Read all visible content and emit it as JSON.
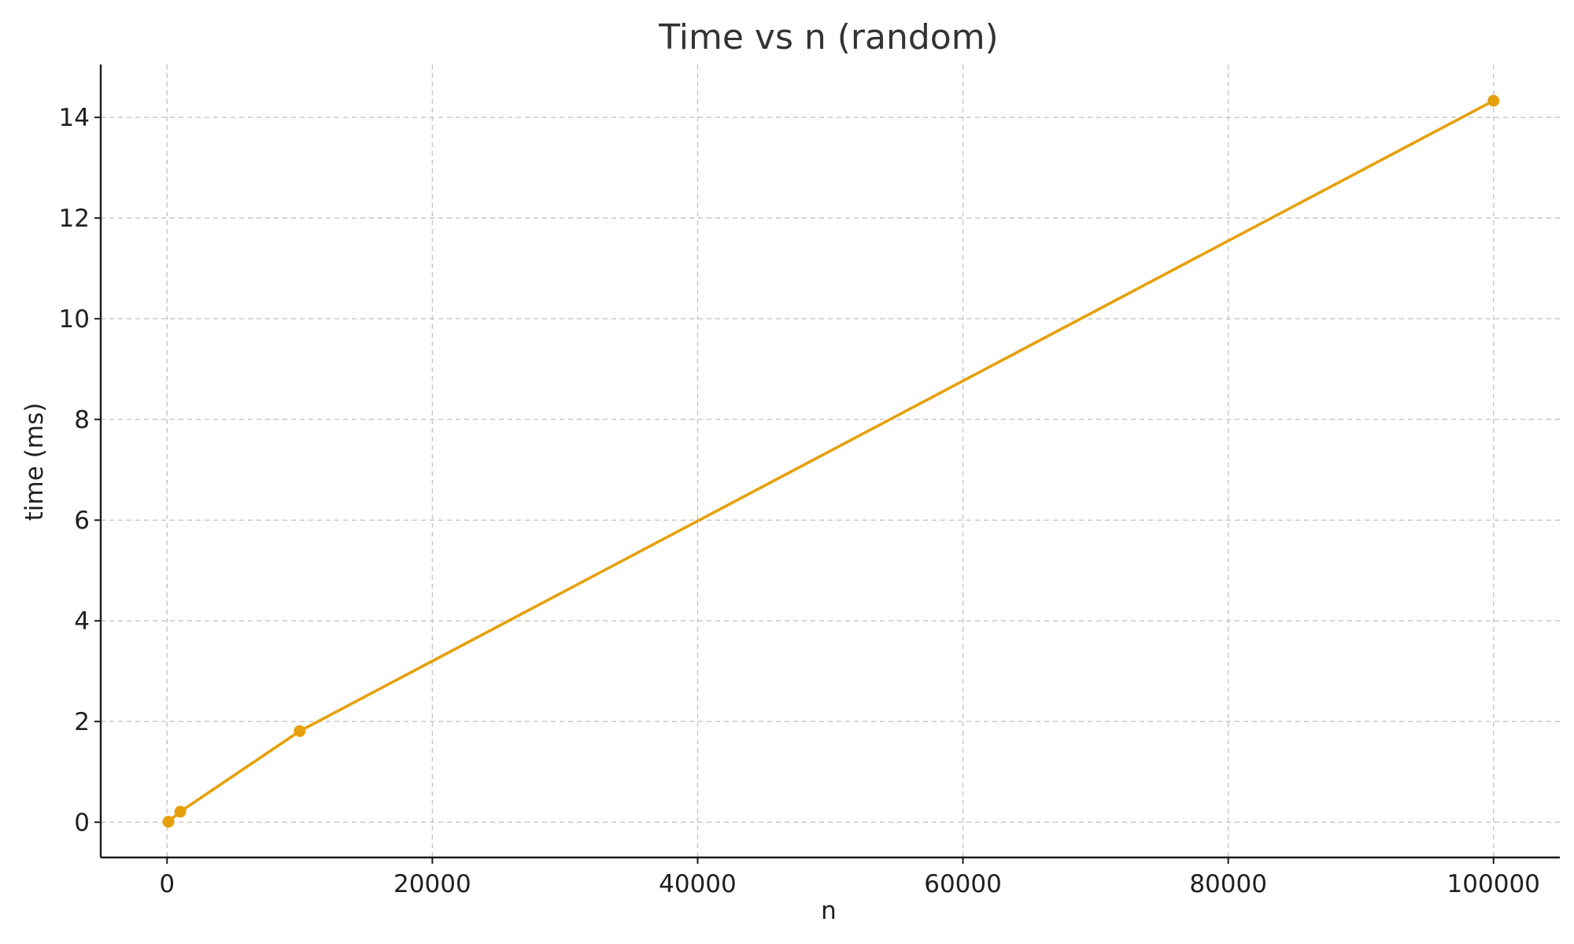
{
  "chart_data": {
    "type": "line",
    "title": "Time vs n (random)",
    "xlabel": "n",
    "ylabel": "time (ms)",
    "xlim": [
      -5000,
      105000
    ],
    "ylim": [
      -0.7,
      15.05
    ],
    "xticks": [
      0,
      20000,
      40000,
      60000,
      80000,
      100000
    ],
    "xtick_labels": [
      "0",
      "20000",
      "40000",
      "60000",
      "80000",
      "100000"
    ],
    "yticks": [
      0,
      2,
      4,
      6,
      8,
      10,
      12,
      14
    ],
    "ytick_labels": [
      "0",
      "2",
      "4",
      "6",
      "8",
      "10",
      "12",
      "14"
    ],
    "grid": true,
    "series": [
      {
        "name": "random",
        "color": "#e6a00b",
        "x": [
          100,
          1000,
          10000,
          100000
        ],
        "y": [
          0.01,
          0.21,
          1.81,
          14.33
        ]
      }
    ]
  }
}
